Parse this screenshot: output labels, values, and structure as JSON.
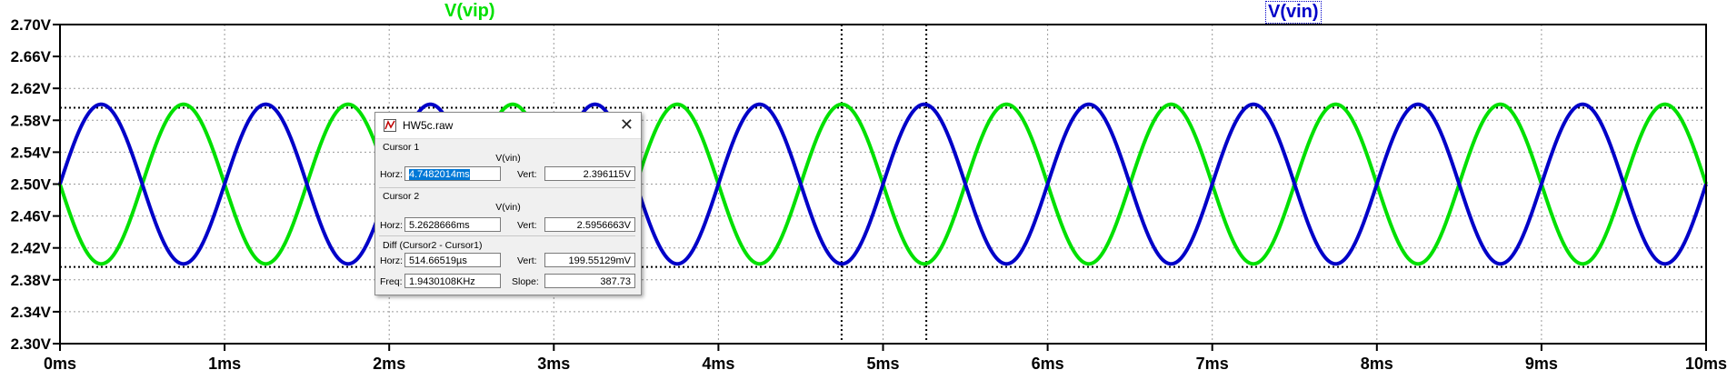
{
  "chart_data": {
    "type": "line",
    "x_unit": "ms",
    "xlim": [
      0,
      10
    ],
    "ylim": [
      2.3,
      2.7
    ],
    "x_ticks": [
      0,
      1,
      2,
      3,
      4,
      5,
      6,
      7,
      8,
      9,
      10
    ],
    "x_tick_labels": [
      "0ms",
      "1ms",
      "2ms",
      "3ms",
      "4ms",
      "5ms",
      "6ms",
      "7ms",
      "8ms",
      "9ms",
      "10ms"
    ],
    "y_ticks": [
      2.3,
      2.34,
      2.38,
      2.42,
      2.46,
      2.5,
      2.54,
      2.58,
      2.62,
      2.66,
      2.7
    ],
    "y_tick_labels": [
      "2.30V",
      "2.34V",
      "2.38V",
      "2.42V",
      "2.46V",
      "2.50V",
      "2.54V",
      "2.58V",
      "2.62V",
      "2.66V",
      "2.70V"
    ],
    "grid": true,
    "series": [
      {
        "name": "V(vip)",
        "color": "#00e000",
        "offset": 2.5,
        "amplitude": 0.1,
        "frequency_khz": 1.0,
        "phase": "negative-sine",
        "x": [
          0,
          0.25,
          0.5,
          0.75,
          1.0
        ],
        "y": [
          2.5,
          2.4,
          2.5,
          2.6,
          2.5
        ]
      },
      {
        "name": "V(vin)",
        "color": "#0000c8",
        "offset": 2.5,
        "amplitude": 0.1,
        "frequency_khz": 1.0,
        "phase": "sine",
        "x": [
          0,
          0.25,
          0.5,
          0.75,
          1.0
        ],
        "y": [
          2.5,
          2.6,
          2.5,
          2.4,
          2.5
        ]
      }
    ],
    "cursors": {
      "vertical_ms": [
        4.7482014,
        5.2628666
      ],
      "horizontal_v": [
        2.5956663,
        2.396115
      ]
    }
  },
  "dialog": {
    "title": "HW5c.raw",
    "cursor1_label": "Cursor 1",
    "cursor1_trace": "V(vin)",
    "cursor1_horz": "4.7482014ms",
    "cursor1_vert": "2.396115V",
    "cursor2_label": "Cursor 2",
    "cursor2_trace": "V(vin)",
    "cursor2_horz": "5.2628666ms",
    "cursor2_vert": "2.5956663V",
    "diff_label": "Diff (Cursor2 - Cursor1)",
    "diff_horz": "514.66519µs",
    "diff_vert": "199.55129mV",
    "diff_freq": "1.9430108KHz",
    "diff_slope": "387.73",
    "horz_label": "Horz:",
    "vert_label": "Vert:",
    "freq_label": "Freq:",
    "slope_label": "Slope:",
    "close_glyph": "✕"
  }
}
